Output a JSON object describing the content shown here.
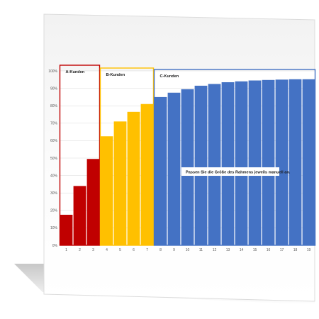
{
  "chart_data": {
    "type": "bar",
    "categories": [
      "1",
      "2",
      "3",
      "4",
      "5",
      "6",
      "7",
      "8",
      "9",
      "10",
      "11",
      "12",
      "13",
      "14",
      "15",
      "16",
      "17",
      "18",
      "19"
    ],
    "values": [
      17.5,
      34,
      49.5,
      62.5,
      71,
      76.5,
      81,
      85,
      87.5,
      89.5,
      91.5,
      92.5,
      93.5,
      94,
      94.5,
      94.8,
      95,
      95.2,
      95.2
    ],
    "colors": [
      "#c00000",
      "#c00000",
      "#c00000",
      "#ffc000",
      "#ffc000",
      "#ffc000",
      "#ffc000",
      "#4472c4",
      "#4472c4",
      "#4472c4",
      "#4472c4",
      "#4472c4",
      "#4472c4",
      "#4472c4",
      "#4472c4",
      "#4472c4",
      "#4472c4",
      "#4472c4",
      "#4472c4"
    ],
    "ylim": [
      0,
      100
    ],
    "yticks": [
      0,
      10,
      20,
      30,
      40,
      50,
      60,
      70,
      80,
      90,
      100
    ],
    "ytick_suffix": "%",
    "grid": true,
    "groups": [
      {
        "label": "A-Kunden",
        "first": 1,
        "last": 3,
        "color": "#c00000"
      },
      {
        "label": "B-Kunden",
        "first": 4,
        "last": 7,
        "color": "#ffc000"
      },
      {
        "label": "C-Kunden",
        "first": 8,
        "last": 19,
        "color": "#4472c4"
      }
    ],
    "annotation": "Passen Sie die Größe des Rahmens jeweils manuell an."
  }
}
